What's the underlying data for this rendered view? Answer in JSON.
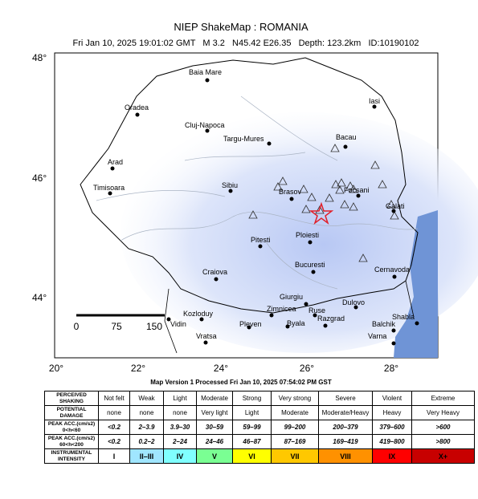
{
  "header": {
    "title": "NIEP ShakeMap : ROMANIA",
    "subtitle": "Fri Jan 10, 2025 19:01:02 GMT   M 3.2   N45.42 E26.35   Depth: 123.2km   ID:10190102"
  },
  "map": {
    "lat_labels": [
      "48°",
      "46°",
      "44°"
    ],
    "lon_labels": [
      "20°",
      "22°",
      "24°",
      "26°",
      "28°"
    ],
    "cities": [
      "Baia Mare",
      "Oradea",
      "Cluj-Napoca",
      "Targu-Mures",
      "Iasi",
      "Bacau",
      "Arad",
      "Timisoara",
      "Sibiu",
      "Brasov",
      "Focsani",
      "Galati",
      "Ploiesti",
      "Pitesti",
      "Bucuresti",
      "Craiova",
      "Cernavoda",
      "Giurgiu",
      "Dulovo",
      "Zimnicea",
      "Ruse",
      "Kozloduy",
      "Vidin",
      "Razgrad",
      "Shabla",
      "Pleven",
      "Byala",
      "Balchik",
      "Vratsa",
      "Varna"
    ],
    "scale_labels": [
      "0",
      "75",
      "150"
    ]
  },
  "footer": "Map Version 1 Processed Fri Jan 10, 2025 07:54:02 PM GST",
  "legend": {
    "rows": [
      {
        "label": [
          "PERCEIVED",
          "SHAKING"
        ],
        "cells": [
          "Not felt",
          "Weak",
          "Light",
          "Moderate",
          "Strong",
          "Very strong",
          "Severe",
          "Violent",
          "Extreme"
        ]
      },
      {
        "label": [
          "POTENTIAL",
          "DAMAGE"
        ],
        "cells": [
          "none",
          "none",
          "none",
          "Very light",
          "Light",
          "Moderate",
          "Moderate/Heavy",
          "Heavy",
          "Very Heavy"
        ]
      },
      {
        "label": [
          "PEAK ACC.(cm/s2)",
          "0<h<60"
        ],
        "cells": [
          "<0.2",
          "2–3.9",
          "3.9–30",
          "30–59",
          "59–99",
          "99–200",
          "200–379",
          "379–600",
          ">600"
        ]
      },
      {
        "label": [
          "PEAK ACC.(cm/s2)",
          "60<h<200"
        ],
        "cells": [
          "<0.2",
          "0.2–2",
          "2–24",
          "24–46",
          "46–87",
          "87–169",
          "169–419",
          "419–800",
          ">800"
        ]
      },
      {
        "label": [
          "INSTRUMENTAL",
          "INTENSITY"
        ],
        "cells": [
          "I",
          "II–III",
          "IV",
          "V",
          "VI",
          "VII",
          "VIII",
          "IX",
          "X+"
        ]
      }
    ]
  }
}
